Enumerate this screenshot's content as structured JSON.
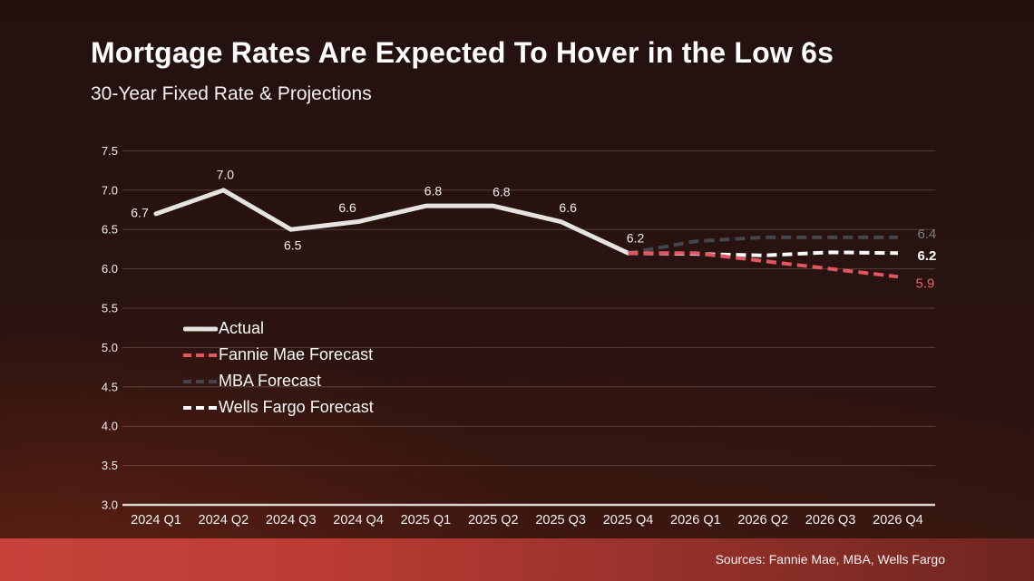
{
  "header": {
    "title": "Mortgage Rates Are Expected To Hover in the Low 6s",
    "subtitle": "30-Year Fixed Rate & Projections"
  },
  "footer": {
    "sources": "Sources: Fannie Mae, MBA, Wells Fargo"
  },
  "colors": {
    "background_top": "#231110",
    "background_bottom": "#33150f",
    "accent_bar_left": "#c7433a",
    "accent_bar_right": "#6e2520",
    "grid_line": "rgba(236,222,214,0.22)",
    "axis_line": "#d8d4d0",
    "axis_text": "#f1efed"
  },
  "chart_data": {
    "type": "line",
    "title": "30-Year Fixed Rate & Projections",
    "x_categories": [
      "2024 Q1",
      "2024 Q2",
      "2024 Q3",
      "2024 Q4",
      "2025 Q1",
      "2025 Q2",
      "2025 Q3",
      "2025 Q4",
      "2026 Q1",
      "2026 Q2",
      "2026 Q3",
      "2026 Q4"
    ],
    "ylim": [
      3.0,
      7.5
    ],
    "y_tick_step": 0.5,
    "y_tick_labels": [
      "7.5",
      "7.0",
      "6.5",
      "6.0",
      "5.5",
      "5.0",
      "4.5",
      "4.0",
      "3.5",
      "3.0"
    ],
    "grid": true,
    "legend_position": "inside-left",
    "legend": [
      "Actual",
      "Fannie Mae Forecast",
      "MBA Forecast",
      "Wells Fargo Forecast"
    ],
    "series": [
      {
        "name": "Actual",
        "type": "solid",
        "color": "#e6e4e1",
        "label_color": "#efedea",
        "start_index": 0,
        "values": [
          6.7,
          7.0,
          6.5,
          6.6,
          6.8,
          6.8,
          6.6,
          6.2
        ],
        "point_labels": [
          "6.7",
          "7.0",
          "6.5",
          "6.6",
          "6.8",
          "6.8",
          "6.6",
          "6.2"
        ]
      },
      {
        "name": "Fannie Mae Forecast",
        "type": "dashed",
        "color": "#e2565f",
        "label_color": "#e4606b",
        "start_index": 7,
        "values": [
          6.2,
          6.2,
          6.1,
          6.0,
          5.9
        ],
        "end_label": "5.9"
      },
      {
        "name": "MBA Forecast",
        "type": "dashed",
        "color": "#43474c",
        "label_color": "#7a7f86",
        "start_index": 7,
        "values": [
          6.2,
          6.35,
          6.4,
          6.4,
          6.4
        ],
        "end_label": "6.4"
      },
      {
        "name": "Wells Fargo Forecast",
        "type": "dashed",
        "color": "#fbfbfb",
        "label_color": "#ffffff",
        "start_index": 7,
        "values": [
          6.2,
          6.19,
          6.17,
          6.21,
          6.2
        ],
        "end_label": "6.2"
      }
    ]
  }
}
